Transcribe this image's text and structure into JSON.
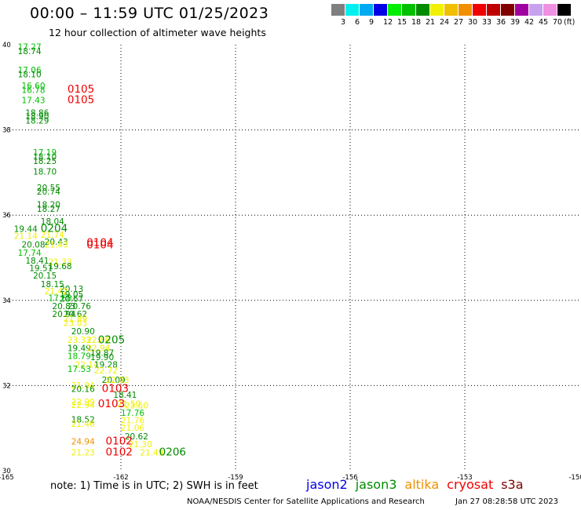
{
  "header": {
    "title": "00:00 – 11:59 UTC 01/25/2023",
    "subtitle": "12 hour collection of altimeter wave heights"
  },
  "legend": {
    "unit_label": "(ft)",
    "items": [
      {
        "label": "3",
        "color": "#7f7f7f"
      },
      {
        "label": "6",
        "color": "#00f0f0"
      },
      {
        "label": "9",
        "color": "#00aaf0"
      },
      {
        "label": "12",
        "color": "#0000e6"
      },
      {
        "label": "15",
        "color": "#00ee00"
      },
      {
        "label": "18",
        "color": "#00c000"
      },
      {
        "label": "21",
        "color": "#008c00"
      },
      {
        "label": "24",
        "color": "#f0f000"
      },
      {
        "label": "27",
        "color": "#f0c000"
      },
      {
        "label": "30",
        "color": "#f09000"
      },
      {
        "label": "33",
        "color": "#f00000"
      },
      {
        "label": "36",
        "color": "#c00000"
      },
      {
        "label": "39",
        "color": "#800000"
      },
      {
        "label": "42",
        "color": "#a000a0"
      },
      {
        "label": "45",
        "color": "#c8a0f0"
      },
      {
        "label": "70",
        "color": "#f090e0"
      },
      {
        "label": "",
        "color": "#000000"
      }
    ]
  },
  "chart_data": {
    "type": "scatter",
    "title": "00:00 – 11:59 UTC 01/25/2023",
    "subtitle": "12 hour collection of altimeter wave heights",
    "xlim": [
      -165,
      -150
    ],
    "ylim": [
      30,
      40
    ],
    "x_ticks": [
      "-165",
      "-162",
      "-159",
      "-156",
      "-153",
      "-150"
    ],
    "y_ticks": [
      "40",
      "38",
      "36",
      "34",
      "32",
      "30"
    ],
    "grid": true,
    "points": [
      {
        "lon": -164.7,
        "lat": 39.88,
        "label": "17.27",
        "color": "#00c000"
      },
      {
        "lon": -164.7,
        "lat": 39.78,
        "label": "18.74",
        "color": "#008c00"
      },
      {
        "lon": -164.7,
        "lat": 39.34,
        "label": "17.06",
        "color": "#00c000"
      },
      {
        "lon": -164.7,
        "lat": 39.24,
        "label": "18.10",
        "color": "#008c00"
      },
      {
        "lon": -164.6,
        "lat": 38.97,
        "label": "16.60",
        "color": "#00c000"
      },
      {
        "lon": -164.6,
        "lat": 38.87,
        "label": "16.78",
        "color": "#00c000"
      },
      {
        "lon": -164.6,
        "lat": 38.63,
        "label": "17.43",
        "color": "#00c000"
      },
      {
        "lon": -164.5,
        "lat": 38.33,
        "label": "18.86",
        "color": "#008c00"
      },
      {
        "lon": -164.5,
        "lat": 38.25,
        "label": "18.90",
        "color": "#008c00"
      },
      {
        "lon": -164.5,
        "lat": 38.15,
        "label": "18.29",
        "color": "#008c00"
      },
      {
        "lon": -164.3,
        "lat": 37.4,
        "label": "17.19",
        "color": "#00c000"
      },
      {
        "lon": -164.3,
        "lat": 37.3,
        "label": "18.10",
        "color": "#008c00"
      },
      {
        "lon": -164.3,
        "lat": 37.2,
        "label": "18.25",
        "color": "#008c00"
      },
      {
        "lon": -164.3,
        "lat": 36.95,
        "label": "18.70",
        "color": "#008c00"
      },
      {
        "lon": -164.2,
        "lat": 36.57,
        "label": "20.55",
        "color": "#008c00"
      },
      {
        "lon": -164.2,
        "lat": 36.48,
        "label": "20.74",
        "color": "#008c00"
      },
      {
        "lon": -164.2,
        "lat": 36.18,
        "label": "18.20",
        "color": "#008c00"
      },
      {
        "lon": -164.2,
        "lat": 36.08,
        "label": "18.27",
        "color": "#008c00"
      },
      {
        "lon": -164.1,
        "lat": 35.78,
        "label": "18.04",
        "color": "#008c00"
      },
      {
        "lon": -164.8,
        "lat": 35.61,
        "label": "19.44",
        "color": "#008c00"
      },
      {
        "lon": -164.1,
        "lat": 35.47,
        "label": "21.74",
        "color": "#f0f000"
      },
      {
        "lon": -164.8,
        "lat": 35.44,
        "label": "21.14",
        "color": "#f0f000"
      },
      {
        "lon": -164.0,
        "lat": 35.3,
        "label": "20.43",
        "color": "#008c00"
      },
      {
        "lon": -164.0,
        "lat": 35.24,
        "label": "21.43",
        "color": "#f0f000"
      },
      {
        "lon": -164.6,
        "lat": 35.24,
        "label": "20.08",
        "color": "#008c00"
      },
      {
        "lon": -164.7,
        "lat": 35.05,
        "label": "17.74",
        "color": "#00c000"
      },
      {
        "lon": -164.5,
        "lat": 34.86,
        "label": "18.41",
        "color": "#008c00"
      },
      {
        "lon": -163.9,
        "lat": 34.83,
        "label": "21.33",
        "color": "#f0f000"
      },
      {
        "lon": -163.9,
        "lat": 34.73,
        "label": "19.68",
        "color": "#008c00"
      },
      {
        "lon": -164.4,
        "lat": 34.69,
        "label": "19.51",
        "color": "#008c00"
      },
      {
        "lon": -164.3,
        "lat": 34.51,
        "label": "20.15",
        "color": "#008c00"
      },
      {
        "lon": -164.1,
        "lat": 34.31,
        "label": "18.15",
        "color": "#008c00"
      },
      {
        "lon": -163.6,
        "lat": 34.2,
        "label": "20.13",
        "color": "#008c00"
      },
      {
        "lon": -164.0,
        "lat": 34.14,
        "label": "21.42",
        "color": "#f0f000"
      },
      {
        "lon": -163.6,
        "lat": 34.07,
        "label": "19.05",
        "color": "#008c00"
      },
      {
        "lon": -163.9,
        "lat": 33.99,
        "label": "17.68",
        "color": "#00c000"
      },
      {
        "lon": -163.6,
        "lat": 33.97,
        "label": "20.67",
        "color": "#008c00"
      },
      {
        "lon": -163.8,
        "lat": 33.79,
        "label": "20.83",
        "color": "#008c00"
      },
      {
        "lon": -163.4,
        "lat": 33.79,
        "label": "20.76",
        "color": "#008c00"
      },
      {
        "lon": -163.8,
        "lat": 33.61,
        "label": "20.94",
        "color": "#008c00"
      },
      {
        "lon": -163.5,
        "lat": 33.61,
        "label": "20.62",
        "color": "#008c00"
      },
      {
        "lon": -163.5,
        "lat": 33.5,
        "label": "21.89",
        "color": "#f0f000"
      },
      {
        "lon": -163.5,
        "lat": 33.4,
        "label": "23.03",
        "color": "#f0f000"
      },
      {
        "lon": -163.3,
        "lat": 33.2,
        "label": "20.90",
        "color": "#008c00"
      },
      {
        "lon": -163.4,
        "lat": 33.0,
        "label": "23.33",
        "color": "#f0f000"
      },
      {
        "lon": -162.9,
        "lat": 33.0,
        "label": "22.86",
        "color": "#f0f000"
      },
      {
        "lon": -163.4,
        "lat": 32.81,
        "label": "19.49",
        "color": "#008c00"
      },
      {
        "lon": -162.9,
        "lat": 32.81,
        "label": "22.94",
        "color": "#f0f000"
      },
      {
        "lon": -162.8,
        "lat": 32.7,
        "label": "19.87",
        "color": "#008c00"
      },
      {
        "lon": -163.4,
        "lat": 32.62,
        "label": "18.79",
        "color": "#00c000"
      },
      {
        "lon": -162.8,
        "lat": 32.6,
        "label": "19.90",
        "color": "#008c00"
      },
      {
        "lon": -163.2,
        "lat": 32.42,
        "label": "22.14",
        "color": "#f0f000"
      },
      {
        "lon": -162.7,
        "lat": 32.42,
        "label": "19.28",
        "color": "#008c00"
      },
      {
        "lon": -163.4,
        "lat": 32.32,
        "label": "17.53",
        "color": "#00c000"
      },
      {
        "lon": -162.7,
        "lat": 32.28,
        "label": "22.72",
        "color": "#f0f000"
      },
      {
        "lon": -162.5,
        "lat": 32.06,
        "label": "20.09",
        "color": "#008c00"
      },
      {
        "lon": -162.4,
        "lat": 32.06,
        "label": "22.03",
        "color": "#f0f000"
      },
      {
        "lon": -163.3,
        "lat": 31.93,
        "label": "21.04",
        "color": "#f0f000"
      },
      {
        "lon": -163.3,
        "lat": 31.85,
        "label": "20.16",
        "color": "#008c00"
      },
      {
        "lon": -162.2,
        "lat": 31.71,
        "label": "18.41",
        "color": "#008c00"
      },
      {
        "lon": -163.3,
        "lat": 31.55,
        "label": "22.99",
        "color": "#f0f000"
      },
      {
        "lon": -163.3,
        "lat": 31.47,
        "label": "22.94",
        "color": "#f0f000"
      },
      {
        "lon": -162.1,
        "lat": 31.5,
        "label": "21.50",
        "color": "#f0f000"
      },
      {
        "lon": -161.9,
        "lat": 31.46,
        "label": "23.60",
        "color": "#f0f000"
      },
      {
        "lon": -162.0,
        "lat": 31.29,
        "label": "17.76",
        "color": "#00c000"
      },
      {
        "lon": -163.3,
        "lat": 31.13,
        "label": "18.52",
        "color": "#008c00"
      },
      {
        "lon": -162.0,
        "lat": 31.11,
        "label": "21.76",
        "color": "#f0f000"
      },
      {
        "lon": -163.3,
        "lat": 31.03,
        "label": "21.46",
        "color": "#f0f000"
      },
      {
        "lon": -162.0,
        "lat": 30.94,
        "label": "21.06",
        "color": "#f0f000"
      },
      {
        "lon": -161.9,
        "lat": 30.74,
        "label": "20.62",
        "color": "#008c00"
      },
      {
        "lon": -163.3,
        "lat": 30.62,
        "label": "24.94",
        "color": "#f09000"
      },
      {
        "lon": -161.8,
        "lat": 30.55,
        "label": "21.30",
        "color": "#f0f000"
      },
      {
        "lon": -163.3,
        "lat": 30.36,
        "label": "21.23",
        "color": "#f0f000"
      },
      {
        "lon": -161.5,
        "lat": 30.36,
        "label": "21.49",
        "color": "#f0f000"
      }
    ],
    "pass_labels": [
      {
        "lon": -163.4,
        "lat": 38.88,
        "label": "0105",
        "color": "#f00000"
      },
      {
        "lon": -163.4,
        "lat": 38.63,
        "label": "0105",
        "color": "#f00000"
      },
      {
        "lon": -164.1,
        "lat": 35.61,
        "label": "0204",
        "color": "#008c00"
      },
      {
        "lon": -162.9,
        "lat": 35.28,
        "label": "0104",
        "color": "#f00000"
      },
      {
        "lon": -162.9,
        "lat": 35.22,
        "label": "0104",
        "color": "#f00000"
      },
      {
        "lon": -162.6,
        "lat": 32.99,
        "label": "0205",
        "color": "#008c00"
      },
      {
        "lon": -162.5,
        "lat": 31.85,
        "label": "0103",
        "color": "#f00000"
      },
      {
        "lon": -162.6,
        "lat": 31.49,
        "label": "0103",
        "color": "#f00000"
      },
      {
        "lon": -162.4,
        "lat": 30.62,
        "label": "0102",
        "color": "#f00000"
      },
      {
        "lon": -162.4,
        "lat": 30.36,
        "label": "0102",
        "color": "#f00000"
      },
      {
        "lon": -161.0,
        "lat": 30.36,
        "label": "0206",
        "color": "#008c00"
      }
    ]
  },
  "footer": {
    "note": "note: 1) Time is in UTC; 2) SWH is in feet",
    "satellites": [
      {
        "name": "jason2",
        "color": "#0000e6"
      },
      {
        "name": "jason3",
        "color": "#008c00"
      },
      {
        "name": "altika",
        "color": "#f09000"
      },
      {
        "name": "cryosat",
        "color": "#f00000"
      },
      {
        "name": "s3a",
        "color": "#800000"
      }
    ],
    "credit": "NOAA/NESDIS Center for Satellite Applications and Research",
    "timestamp": "Jan 27 08:28:58 UTC 2023"
  }
}
